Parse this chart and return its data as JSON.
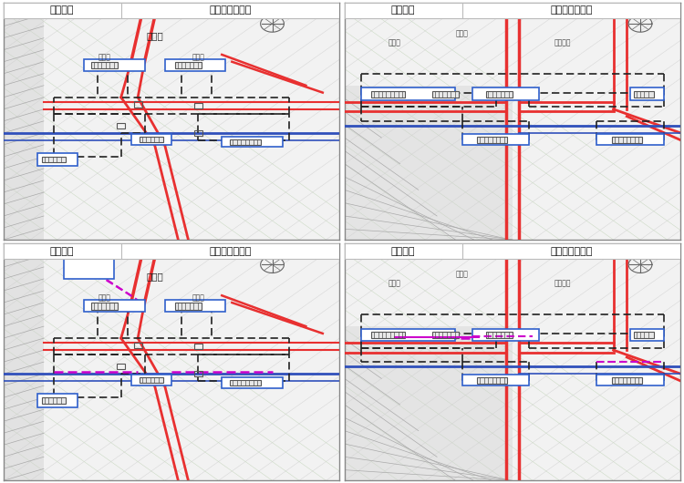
{
  "panels": [
    {
      "title": "上河村站",
      "subtitle": "变更前总平面图",
      "row": 0,
      "col": 0
    },
    {
      "title": "红椿路站",
      "subtitle": "变更前总平面图",
      "row": 0,
      "col": 1
    },
    {
      "title": "上河村站",
      "subtitle": "变更后总平面图",
      "row": 1,
      "col": 0
    },
    {
      "title": "红椿路站",
      "subtitle": "变更后总平面图",
      "row": 1,
      "col": 1
    }
  ],
  "bg_light": "#f0f0f0",
  "bg_panel": "#f4f4f4",
  "road_red": "#e83030",
  "road_blue": "#3050bb",
  "road_green": "#50a050",
  "dashed_dark": "#222222",
  "box_blue": "#3060cc",
  "magenta": "#cc00cc",
  "gray_hatch": "#b0b0b0",
  "green_diag": "#88bb88",
  "title_bg": "#ffffff"
}
